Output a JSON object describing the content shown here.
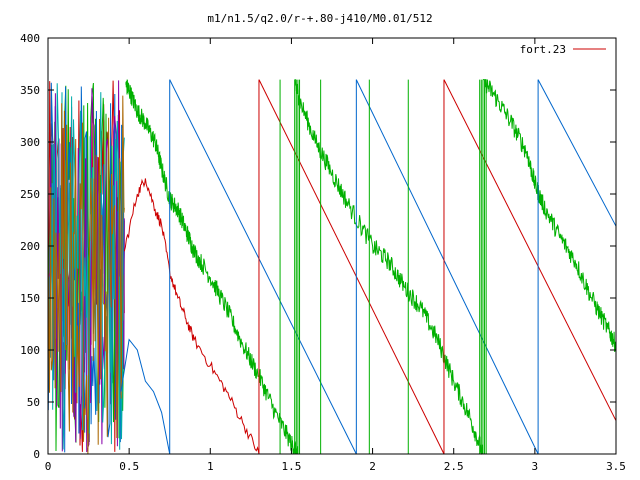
{
  "chart_data": {
    "type": "line",
    "title": "m1/n1.5/q2.0/r-+.80-j410/M0.01/512",
    "xlabel": "",
    "ylabel": "",
    "xlim": [
      0,
      3.5
    ],
    "ylim": [
      0,
      400
    ],
    "x_ticks": [
      "0",
      "0.5",
      "1",
      "1.5",
      "2",
      "2.5",
      "3",
      "3.5"
    ],
    "y_ticks": [
      "0",
      "50",
      "100",
      "150",
      "200",
      "250",
      "300",
      "350",
      "400"
    ],
    "grid": false,
    "legend_position": "top-right",
    "series": [
      {
        "name": "fort.23",
        "color": "#cc0000",
        "segments": [
          [
            [
              0.47,
              195
            ],
            [
              0.55,
              250
            ],
            [
              0.6,
              265
            ],
            [
              0.66,
              235
            ],
            [
              0.7,
              220
            ],
            [
              0.75,
              175
            ],
            [
              0.8,
              150
            ],
            [
              0.85,
              130
            ],
            [
              0.9,
              110
            ],
            [
              1.0,
              85
            ],
            [
              1.1,
              60
            ],
            [
              1.2,
              30
            ],
            [
              1.3,
              0
            ]
          ],
          [
            [
              1.3,
              360
            ],
            [
              2.44,
              0
            ]
          ],
          [
            [
              2.44,
              360
            ],
            [
              3.5,
              32
            ]
          ]
        ]
      },
      {
        "name": "",
        "color": "#00b000",
        "segments": [
          [
            [
              0.48,
              355
            ],
            [
              0.5,
              350
            ],
            [
              0.55,
              330
            ],
            [
              0.6,
              318
            ],
            [
              0.66,
              300
            ],
            [
              0.7,
              275
            ],
            [
              0.75,
              245
            ],
            [
              0.8,
              235
            ],
            [
              0.85,
              215
            ],
            [
              0.9,
              195
            ],
            [
              1.0,
              170
            ],
            [
              1.1,
              140
            ],
            [
              1.2,
              105
            ],
            [
              1.3,
              75
            ],
            [
              1.4,
              40
            ],
            [
              1.5,
              10
            ],
            [
              1.54,
              0
            ]
          ],
          [
            [
              1.52,
              360
            ],
            [
              1.55,
              340
            ],
            [
              1.65,
              300
            ],
            [
              1.75,
              270
            ],
            [
              1.85,
              240
            ],
            [
              2.0,
              200
            ],
            [
              2.1,
              185
            ],
            [
              2.2,
              160
            ],
            [
              2.3,
              140
            ],
            [
              2.4,
              110
            ],
            [
              2.5,
              70
            ],
            [
              2.6,
              35
            ],
            [
              2.68,
              0
            ]
          ],
          [
            [
              2.68,
              360
            ],
            [
              2.75,
              345
            ],
            [
              2.85,
              320
            ],
            [
              2.95,
              290
            ],
            [
              3.0,
              260
            ],
            [
              3.05,
              240
            ],
            [
              3.15,
              210
            ],
            [
              3.25,
              185
            ],
            [
              3.35,
              150
            ],
            [
              3.45,
              120
            ],
            [
              3.5,
              105
            ]
          ]
        ]
      },
      {
        "name": "",
        "color": "#0066cc",
        "segments": [
          [
            [
              0.45,
              60
            ],
            [
              0.5,
              110
            ],
            [
              0.55,
              100
            ],
            [
              0.6,
              70
            ],
            [
              0.65,
              60
            ],
            [
              0.7,
              40
            ],
            [
              0.75,
              0
            ]
          ],
          [
            [
              0.75,
              360
            ],
            [
              1.9,
              0
            ]
          ],
          [
            [
              1.9,
              360
            ],
            [
              3.02,
              0
            ]
          ],
          [
            [
              3.02,
              360
            ],
            [
              3.5,
              219
            ]
          ]
        ]
      }
    ],
    "vertical_spikes": [
      {
        "x": 1.3,
        "color": "#cc0000"
      },
      {
        "x": 2.44,
        "color": "#cc0000"
      },
      {
        "x": 0.75,
        "color": "#0066cc"
      },
      {
        "x": 1.9,
        "color": "#0066cc"
      },
      {
        "x": 3.02,
        "color": "#0066cc"
      },
      {
        "x": 1.43,
        "color": "#00b000"
      },
      {
        "x": 1.52,
        "color": "#00b000"
      },
      {
        "x": 1.53,
        "color": "#00b000"
      },
      {
        "x": 1.54,
        "color": "#00b000"
      },
      {
        "x": 1.55,
        "color": "#00b000"
      },
      {
        "x": 1.68,
        "color": "#00b000"
      },
      {
        "x": 1.98,
        "color": "#00b000"
      },
      {
        "x": 2.22,
        "color": "#00b000"
      },
      {
        "x": 2.66,
        "color": "#00b000"
      },
      {
        "x": 2.67,
        "color": "#00b000"
      },
      {
        "x": 2.68,
        "color": "#00b000"
      },
      {
        "x": 2.69,
        "color": "#00b000"
      },
      {
        "x": 2.7,
        "color": "#00b000"
      }
    ],
    "left_cluster": {
      "x_range": [
        0,
        0.47
      ],
      "colors": [
        "#cc0000",
        "#00b000",
        "#0066cc",
        "#8800aa",
        "#00aaaa",
        "#aa6600"
      ]
    }
  }
}
